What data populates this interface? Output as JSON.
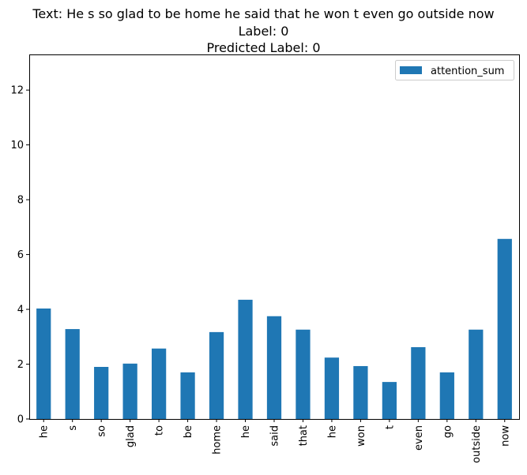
{
  "chart_data": {
    "type": "bar",
    "title_lines": [
      "Text: He s so glad to be home he said that he won t even go outside now",
      "Label: 0",
      "Predicted Label: 0"
    ],
    "categories": [
      "he",
      "s",
      "so",
      "glad",
      "to",
      "be",
      "home",
      "he",
      "said",
      "that",
      "he",
      "won",
      "t",
      "even",
      "go",
      "outside",
      "now"
    ],
    "series": [
      {
        "name": "attention_sum",
        "color": "#1f77b4",
        "values": [
          4.03,
          3.28,
          1.9,
          2.02,
          2.57,
          1.7,
          3.17,
          4.35,
          3.75,
          3.26,
          2.24,
          1.93,
          1.35,
          2.62,
          1.7,
          3.26,
          6.57
        ]
      }
    ],
    "xlabel": "",
    "ylabel": "",
    "ylim": [
      0,
      13.3
    ],
    "yticks": [
      0,
      2,
      4,
      6,
      8,
      10,
      12
    ],
    "legend_position": "top-right",
    "grid": false
  }
}
